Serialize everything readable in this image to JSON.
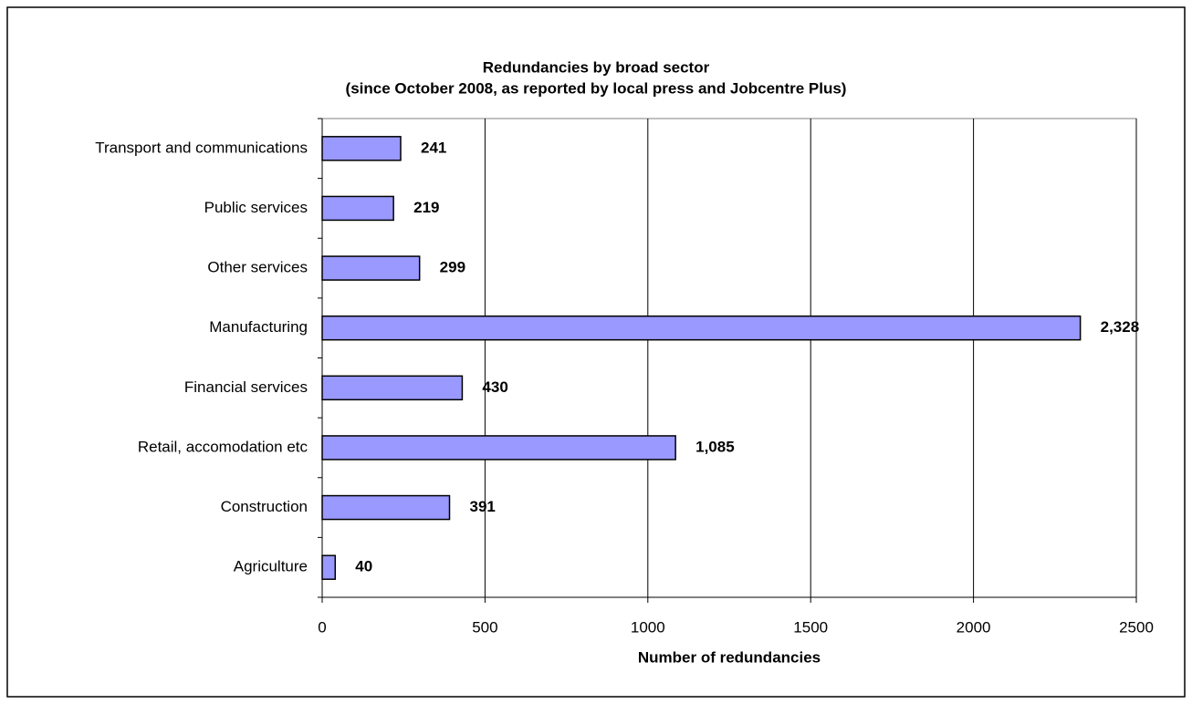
{
  "chart_data": {
    "type": "hbar",
    "title": "Redundancies by broad sector",
    "subtitle": "(since October 2008, as reported by local press and Jobcentre Plus)",
    "x_label": "Number of redundancies",
    "categories": [
      "Transport and communications",
      "Public services",
      "Other services",
      "Manufacturing",
      "Financial services",
      "Retail, accomodation etc",
      "Construction",
      "Agriculture"
    ],
    "values": [
      241,
      219,
      299,
      2328,
      430,
      1085,
      391,
      40
    ],
    "value_labels": [
      "241",
      "219",
      "299",
      "2,328",
      "430",
      "1,085",
      "391",
      "40"
    ],
    "color": "#9999ff",
    "xlim": [
      0,
      2500
    ],
    "xticks": [
      0,
      500,
      1000,
      1500,
      2000,
      2500
    ],
    "grid": true
  }
}
